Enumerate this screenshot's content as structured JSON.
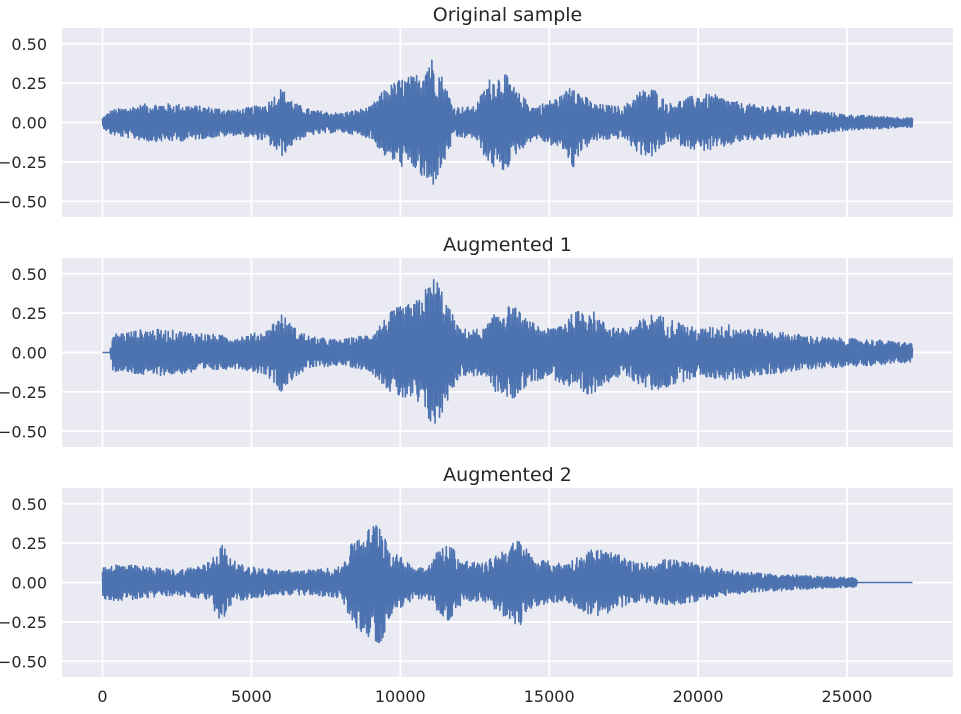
{
  "chart_data": [
    {
      "type": "line",
      "title": "Original sample",
      "ylim": [
        -0.6,
        0.6
      ],
      "xlim": [
        -1360,
        28560
      ],
      "yticks": [
        0.5,
        0.25,
        0.0,
        -0.25,
        -0.5
      ],
      "ytick_labels": [
        "0.50",
        "0.25",
        "0.00",
        "−0.25",
        "−0.50"
      ],
      "xticks": [
        0,
        5000,
        10000,
        15000,
        20000,
        25000
      ],
      "grid": true,
      "series": [
        {
          "color": "#4c72b0",
          "n_samples": 27200,
          "envelope": [
            [
              0,
              0.03
            ],
            [
              300,
              0.08
            ],
            [
              1500,
              0.12
            ],
            [
              2500,
              0.12
            ],
            [
              3500,
              0.1
            ],
            [
              4500,
              0.08
            ],
            [
              5500,
              0.12
            ],
            [
              6000,
              0.22
            ],
            [
              6500,
              0.12
            ],
            [
              7000,
              0.08
            ],
            [
              8000,
              0.06
            ],
            [
              9000,
              0.1
            ],
            [
              9500,
              0.22
            ],
            [
              10000,
              0.28
            ],
            [
              10500,
              0.3
            ],
            [
              11000,
              0.44
            ],
            [
              11400,
              0.3
            ],
            [
              11800,
              0.1
            ],
            [
              12500,
              0.1
            ],
            [
              13000,
              0.28
            ],
            [
              13500,
              0.32
            ],
            [
              13900,
              0.2
            ],
            [
              14500,
              0.1
            ],
            [
              15500,
              0.18
            ],
            [
              15800,
              0.3
            ],
            [
              16000,
              0.2
            ],
            [
              16500,
              0.12
            ],
            [
              17500,
              0.1
            ],
            [
              18000,
              0.2
            ],
            [
              18500,
              0.22
            ],
            [
              19000,
              0.12
            ],
            [
              20000,
              0.18
            ],
            [
              20500,
              0.18
            ],
            [
              21500,
              0.12
            ],
            [
              23000,
              0.1
            ],
            [
              25000,
              0.05
            ],
            [
              27200,
              0.03
            ]
          ]
        }
      ]
    },
    {
      "type": "line",
      "title": "Augmented 1",
      "ylim": [
        -0.6,
        0.6
      ],
      "xlim": [
        -1360,
        28560
      ],
      "yticks": [
        0.5,
        0.25,
        0.0,
        -0.25,
        -0.5
      ],
      "ytick_labels": [
        "0.50",
        "0.25",
        "0.00",
        "−0.25",
        "−0.50"
      ],
      "xticks": [
        0,
        5000,
        10000,
        15000,
        20000,
        25000
      ],
      "grid": true,
      "series": [
        {
          "color": "#4c72b0",
          "n_samples": 27200,
          "envelope": [
            [
              0,
              0
            ],
            [
              250,
              0
            ],
            [
              350,
              0.12
            ],
            [
              1500,
              0.15
            ],
            [
              2500,
              0.14
            ],
            [
              3500,
              0.12
            ],
            [
              4500,
              0.1
            ],
            [
              5500,
              0.14
            ],
            [
              6000,
              0.25
            ],
            [
              6500,
              0.15
            ],
            [
              7000,
              0.1
            ],
            [
              8000,
              0.08
            ],
            [
              9000,
              0.12
            ],
            [
              9800,
              0.28
            ],
            [
              10500,
              0.32
            ],
            [
              11200,
              0.5
            ],
            [
              11600,
              0.3
            ],
            [
              12000,
              0.15
            ],
            [
              12800,
              0.15
            ],
            [
              13300,
              0.28
            ],
            [
              13800,
              0.3
            ],
            [
              14300,
              0.2
            ],
            [
              15000,
              0.15
            ],
            [
              15800,
              0.25
            ],
            [
              16300,
              0.3
            ],
            [
              16800,
              0.2
            ],
            [
              17500,
              0.15
            ],
            [
              18500,
              0.25
            ],
            [
              19000,
              0.22
            ],
            [
              20000,
              0.15
            ],
            [
              21000,
              0.18
            ],
            [
              22000,
              0.15
            ],
            [
              24000,
              0.1
            ],
            [
              26000,
              0.08
            ],
            [
              27200,
              0.06
            ]
          ]
        }
      ]
    },
    {
      "type": "line",
      "title": "Augmented 2",
      "ylim": [
        -0.6,
        0.6
      ],
      "xlim": [
        -1360,
        28560
      ],
      "yticks": [
        0.5,
        0.25,
        0.0,
        -0.25,
        -0.5
      ],
      "ytick_labels": [
        "0.50",
        "0.25",
        "0.00",
        "−0.25",
        "−0.50"
      ],
      "xticks": [
        0,
        5000,
        10000,
        15000,
        20000,
        25000
      ],
      "xtick_labels": [
        "0",
        "5000",
        "10000",
        "15000",
        "20000",
        "25000"
      ],
      "grid": true,
      "series": [
        {
          "color": "#4c72b0",
          "n_samples": 27200,
          "envelope": [
            [
              0,
              0.1
            ],
            [
              500,
              0.12
            ],
            [
              1500,
              0.1
            ],
            [
              2500,
              0.08
            ],
            [
              3500,
              0.12
            ],
            [
              4000,
              0.25
            ],
            [
              4500,
              0.12
            ],
            [
              5000,
              0.1
            ],
            [
              6000,
              0.08
            ],
            [
              7000,
              0.08
            ],
            [
              8000,
              0.1
            ],
            [
              8500,
              0.3
            ],
            [
              9000,
              0.35
            ],
            [
              9300,
              0.42
            ],
            [
              9700,
              0.2
            ],
            [
              10500,
              0.1
            ],
            [
              11000,
              0.12
            ],
            [
              11300,
              0.22
            ],
            [
              11700,
              0.25
            ],
            [
              12000,
              0.15
            ],
            [
              12800,
              0.12
            ],
            [
              13500,
              0.22
            ],
            [
              14000,
              0.28
            ],
            [
              14500,
              0.15
            ],
            [
              15500,
              0.12
            ],
            [
              16500,
              0.22
            ],
            [
              17000,
              0.2
            ],
            [
              18000,
              0.12
            ],
            [
              19000,
              0.15
            ],
            [
              20000,
              0.12
            ],
            [
              21000,
              0.08
            ],
            [
              22000,
              0.06
            ],
            [
              24000,
              0.04
            ],
            [
              25300,
              0.03
            ],
            [
              25350,
              0
            ],
            [
              27200,
              0
            ]
          ]
        }
      ]
    }
  ]
}
